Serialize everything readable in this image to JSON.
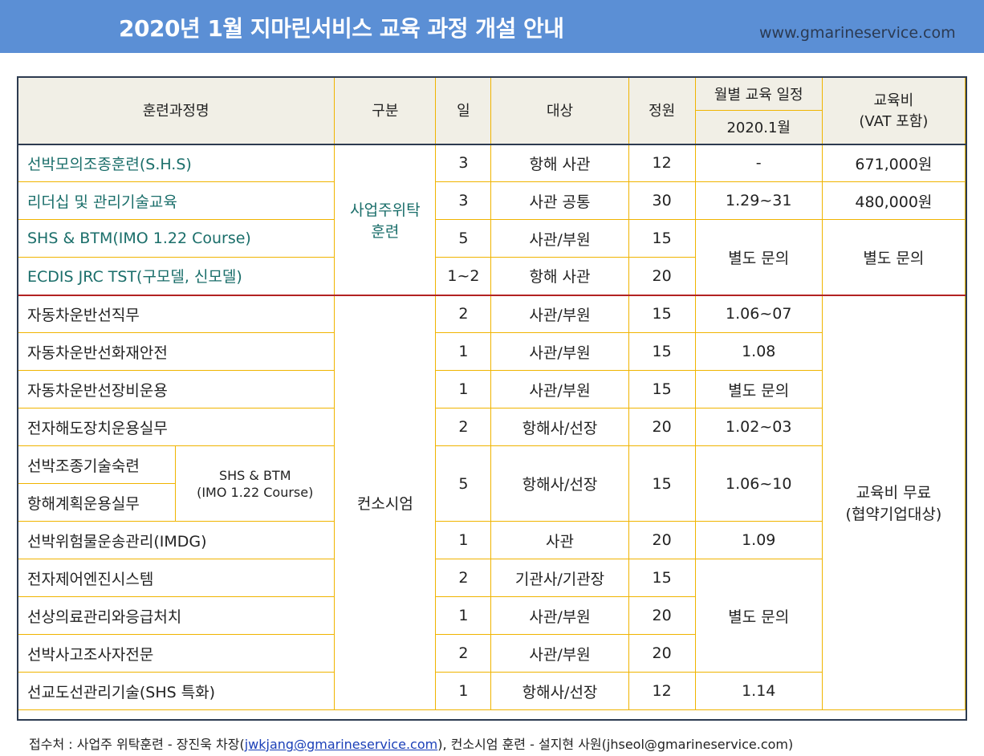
{
  "header": {
    "title": "2020년 1월 지마린서비스 교육 과정 개설 안내",
    "website": "www.gmarineservice.com"
  },
  "table": {
    "headers": {
      "course": "훈련과정명",
      "category": "구분",
      "days": "일",
      "target": "대상",
      "capacity": "정원",
      "schedule": "월별 교육 일정",
      "schedule_month": "2020.1월",
      "fee_line1": "교육비",
      "fee_line2": "(VAT 포함)"
    },
    "group1": {
      "category": [
        "사업주위탁",
        "훈련"
      ],
      "rows": [
        {
          "name": "선박모의조종훈련(S.H.S)",
          "days": "3",
          "target": "항해 사관",
          "capacity": "12",
          "schedule": "-",
          "fee": "671,000원"
        },
        {
          "name": "리더십 및 관리기술교육",
          "days": "3",
          "target": "사관 공통",
          "capacity": "30",
          "schedule": "1.29~31",
          "fee": "480,000원"
        },
        {
          "name": "SHS & BTM(IMO 1.22 Course)",
          "days": "5",
          "target": "사관/부원",
          "capacity": "15",
          "schedule": "별도 문의",
          "fee": "별도 문의"
        },
        {
          "name": "ECDIS JRC TST(구모델, 신모델)",
          "days": "1~2",
          "target": "항해 사관",
          "capacity": "20"
        }
      ]
    },
    "group2": {
      "category": "컨소시엄",
      "fee": [
        "교육비 무료",
        "(협약기업대상)"
      ],
      "rows": [
        {
          "name": "자동차운반선직무",
          "days": "2",
          "target": "사관/부원",
          "capacity": "15",
          "schedule": "1.06~07"
        },
        {
          "name": "자동차운반선화재안전",
          "days": "1",
          "target": "사관/부원",
          "capacity": "15",
          "schedule": "1.08"
        },
        {
          "name": "자동차운반선장비운용",
          "days": "1",
          "target": "사관/부원",
          "capacity": "15",
          "schedule": "별도 문의"
        },
        {
          "name": "전자해도장치운용실무",
          "days": "2",
          "target": "항해사/선장",
          "capacity": "20",
          "schedule": "1.02~03"
        },
        {
          "name": "선박조종기술숙련",
          "sub_name": "항해계획운용실무",
          "note": [
            "SHS & BTM",
            "(IMO 1.22 Course)"
          ],
          "days": "5",
          "target": "항해사/선장",
          "capacity": "15",
          "schedule": "1.06~10"
        },
        {
          "name": "선박위험물운송관리(IMDG)",
          "days": "1",
          "target": "사관",
          "capacity": "20",
          "schedule": "1.09"
        },
        {
          "name": "전자제어엔진시스템",
          "days": "2",
          "target": "기관사/기관장",
          "capacity": "15",
          "schedule": "별도 문의"
        },
        {
          "name": "선상의료관리와응급처치",
          "days": "1",
          "target": "사관/부원",
          "capacity": "20"
        },
        {
          "name": "선박사고조사자전문",
          "days": "2",
          "target": "사관/부원",
          "capacity": "20"
        },
        {
          "name": "선교도선관리기술(SHS 특화)",
          "days": "1",
          "target": "항해사/선장",
          "capacity": "12",
          "schedule": "1.14"
        }
      ]
    }
  },
  "footer": {
    "prefix": "접수처 : 사업주 위탁훈련 - 장진욱 차장(",
    "email1": "jwkjang@gmarineservice.com",
    "middle": "), 컨소시엄 훈련 - 설지현 사원(jhseol@gmarineservice.com)"
  },
  "colors": {
    "header_bg": "#5b8fd5",
    "table_border": "#f0b400",
    "teal_text": "#1a6e6a",
    "group_separator": "#b22222"
  }
}
